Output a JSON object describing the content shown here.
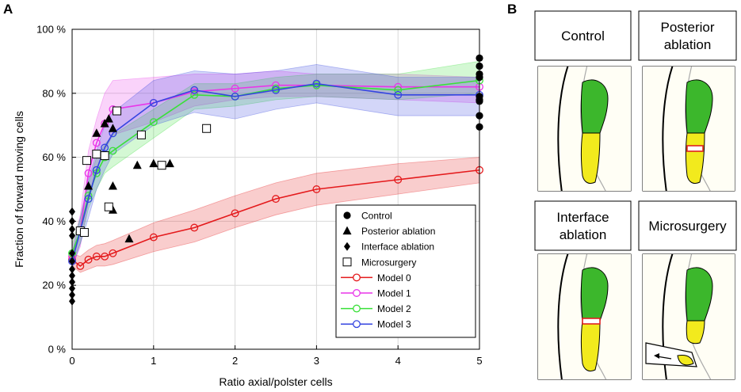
{
  "panel_a_letter": "A",
  "panel_b_letter": "B",
  "chart_data": {
    "type": "line",
    "xlabel": "Ratio axial/polster cells",
    "ylabel": "Fraction of forward moving cells",
    "xlim": [
      0,
      5
    ],
    "ylim": [
      0,
      100
    ],
    "xticks": [
      0,
      1,
      2,
      3,
      4,
      5
    ],
    "xtick_labels": [
      "0",
      "1",
      "2",
      "3",
      "4",
      "5"
    ],
    "yticks": [
      0,
      20,
      40,
      60,
      80,
      100
    ],
    "ytick_labels": [
      "0 %",
      "20 %",
      "40 %",
      "60 %",
      "80 %",
      "100 %"
    ],
    "grid": true,
    "legend_position": "bottom-right",
    "models": [
      {
        "name": "Model 0",
        "color": "#e41a1c",
        "x": [
          0,
          0.1,
          0.2,
          0.3,
          0.4,
          0.5,
          1,
          1.5,
          2,
          2.5,
          3,
          4,
          5
        ],
        "y": [
          28,
          26,
          28,
          29,
          29,
          30,
          35,
          38,
          42.5,
          47,
          50,
          53,
          56
        ],
        "lower": [
          26,
          24,
          25,
          26,
          26,
          26.5,
          30.5,
          33.5,
          38,
          42,
          45,
          48.5,
          52
        ],
        "upper": [
          30,
          29,
          31,
          32.5,
          33,
          34,
          39.5,
          43.5,
          48,
          52,
          55,
          58,
          60
        ]
      },
      {
        "name": "Model 1",
        "color": "#e935e9",
        "x": [
          0,
          0.1,
          0.2,
          0.3,
          0.4,
          0.5,
          1,
          1.5,
          2,
          2.5,
          3,
          4,
          5
        ],
        "y": [
          29,
          37,
          55,
          64.5,
          70.5,
          75,
          77,
          80.5,
          81.5,
          82.5,
          82.5,
          82,
          82
        ],
        "lower": [
          26,
          32,
          46,
          56,
          62,
          67,
          71,
          76,
          78,
          79,
          79,
          78,
          77
        ],
        "upper": [
          32,
          42,
          62,
          72,
          80,
          84,
          85,
          86,
          86,
          87,
          86,
          86,
          85
        ]
      },
      {
        "name": "Model 2",
        "color": "#39e039",
        "x": [
          0,
          0.1,
          0.2,
          0.3,
          0.4,
          0.5,
          1,
          1.5,
          2,
          2.5,
          3,
          4,
          5
        ],
        "y": [
          30,
          37,
          48,
          55,
          60,
          62,
          71,
          79.5,
          79,
          81.5,
          82.5,
          81,
          84
        ],
        "lower": [
          27,
          33,
          44,
          50,
          55,
          57,
          66,
          75,
          76,
          78,
          79,
          78,
          80
        ],
        "upper": [
          33,
          41,
          52,
          60,
          64,
          67,
          75,
          83,
          83,
          85,
          86,
          86,
          90
        ]
      },
      {
        "name": "Model 3",
        "color": "#3545e0",
        "x": [
          0,
          0.1,
          0.2,
          0.3,
          0.4,
          0.5,
          1,
          1.5,
          2,
          2.5,
          3,
          4,
          5
        ],
        "y": [
          27.5,
          37,
          47,
          56,
          63,
          67.5,
          77,
          81,
          79,
          81,
          83,
          79.5,
          79.5
        ],
        "lower": [
          25,
          33,
          41,
          50,
          56,
          61,
          70,
          74,
          72,
          75,
          77,
          73,
          73
        ],
        "upper": [
          30,
          41,
          53,
          62,
          70,
          74,
          84,
          87,
          86,
          87,
          89,
          85,
          85
        ]
      }
    ],
    "experiments": [
      {
        "name": "Control",
        "marker": "circle",
        "x": [
          5,
          5,
          5,
          5,
          5,
          5,
          5,
          5,
          5
        ],
        "y": [
          91,
          88.5,
          86,
          85,
          79,
          78,
          77.5,
          73,
          69.5
        ]
      },
      {
        "name": "Posterior ablation",
        "marker": "triangle",
        "x": [
          0.2,
          0.3,
          0.4,
          0.45,
          0.5,
          0.5,
          0.5,
          0.7,
          0.8,
          1.0,
          1.2
        ],
        "y": [
          51,
          67.5,
          70.5,
          72,
          69,
          51,
          43.5,
          34.5,
          57.5,
          58,
          58
        ]
      },
      {
        "name": "Interface ablation",
        "marker": "diamond",
        "x": [
          0,
          0,
          0,
          0,
          0,
          0,
          0,
          0,
          0,
          0,
          0,
          0
        ],
        "y": [
          43,
          40,
          37.5,
          35.5,
          30,
          27.5,
          25,
          23,
          21,
          19,
          17,
          15
        ]
      },
      {
        "name": "Microsurgery",
        "marker": "square",
        "x": [
          0.1,
          0.15,
          0.18,
          0.3,
          0.4,
          0.45,
          0.55,
          0.85,
          1.1,
          1.65
        ],
        "y": [
          37,
          36.5,
          59,
          61,
          60.5,
          44.5,
          74.5,
          67,
          57.5,
          69
        ]
      }
    ]
  },
  "panel_b": {
    "boxes": [
      {
        "label": "Control",
        "variant": "control"
      },
      {
        "label": "Posterior ablation",
        "variant": "posterior"
      },
      {
        "label": "Interface ablation",
        "variant": "interface"
      },
      {
        "label": "Microsurgery",
        "variant": "microsurgery"
      }
    ],
    "colors": {
      "anterior": "#3cb72c",
      "posterior": "#f2ea1d",
      "ablation": "#e02020",
      "outline": "#000000"
    }
  }
}
